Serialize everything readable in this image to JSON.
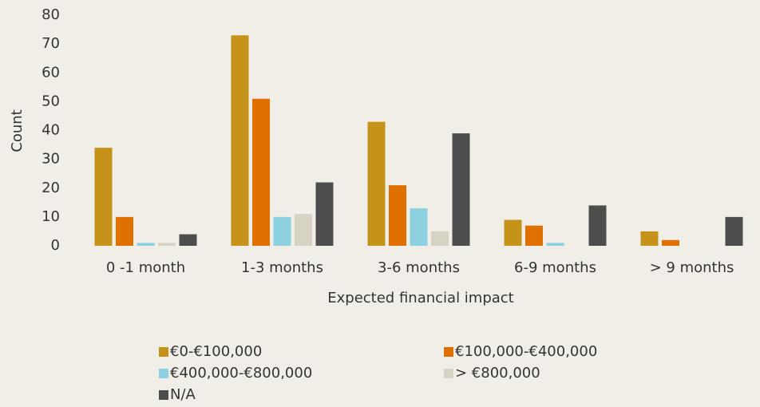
{
  "chart_data": {
    "type": "bar",
    "x_label": "Expected financial impact",
    "y_label": "Count",
    "categories": [
      "0 -1 month",
      "1-3 months",
      "3-6 months",
      "6-9 months",
      "> 9 months"
    ],
    "series": [
      {
        "name": "€0-€100,000",
        "color": "#c5921a",
        "values": [
          34,
          73,
          43,
          9,
          5
        ]
      },
      {
        "name": "€100,000-€400,000",
        "color": "#e07000",
        "values": [
          10,
          51,
          21,
          7,
          2
        ]
      },
      {
        "name": "€400,000-€800,000",
        "color": "#8dd1e1",
        "values": [
          1,
          10,
          13,
          1,
          0
        ]
      },
      {
        "name": "> €800,000",
        "color": "#d6d3c4",
        "values": [
          1,
          11,
          5,
          0,
          0
        ]
      },
      {
        "name": "N/A",
        "color": "#4d4d4d",
        "values": [
          4,
          22,
          39,
          14,
          10
        ]
      }
    ],
    "ylim": [
      0,
      80
    ],
    "yticks": [
      0,
      10,
      20,
      30,
      40,
      50,
      60,
      70,
      80
    ],
    "grid": false,
    "legend": "bottom"
  }
}
